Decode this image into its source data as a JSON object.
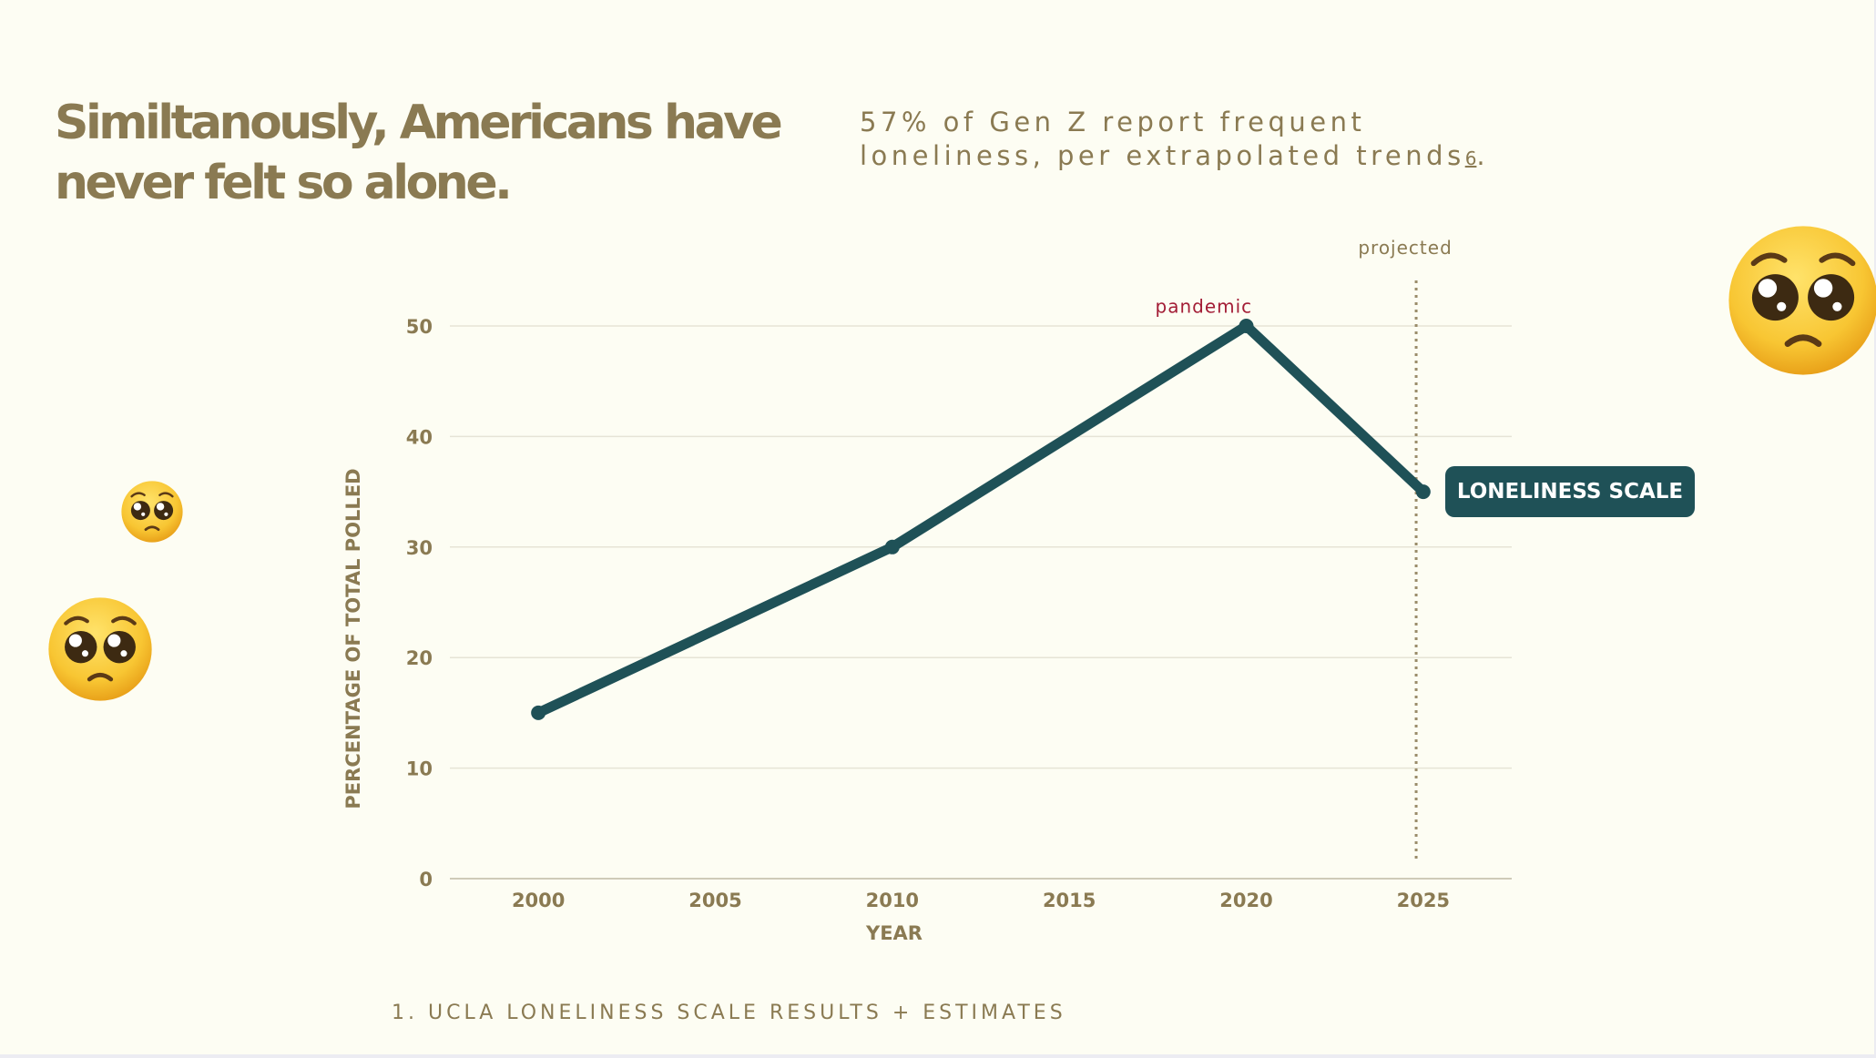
{
  "slide": {
    "title_line1": "Similtanously, Americans have",
    "title_line2": "never felt so alone.",
    "subtitle_line1": "57% of Gen Z report frequent",
    "subtitle_line2": "loneliness, per extrapolated trends",
    "subtitle_ref": "6",
    "subtitle_end": ".",
    "footnote": "1. UCLA LONELINESS SCALE RESULTS + ESTIMATES"
  },
  "decorations": {
    "emoji": "pleading-face-icon"
  },
  "colors": {
    "background": "#fdfdf3",
    "text": "#8a7a52",
    "series": "#1f5157",
    "pandemic": "#a31d36",
    "grid": "#e6e4d6",
    "projection": "#9a8c6a"
  },
  "chart_data": {
    "type": "line",
    "title": "",
    "xlabel": "YEAR",
    "ylabel": "PERCENTAGE OF TOTAL POLLED",
    "xlim": [
      1997.5,
      2027.5
    ],
    "ylim": [
      0,
      50
    ],
    "x_ticks": [
      2000,
      2005,
      2010,
      2015,
      2020,
      2025
    ],
    "y_ticks": [
      0,
      10,
      20,
      30,
      40,
      50
    ],
    "grid": true,
    "series": [
      {
        "name": "LONELINESS SCALE",
        "x": [
          2000,
          2010,
          2020,
          2025
        ],
        "values": [
          15,
          30,
          50,
          35
        ]
      }
    ],
    "annotations": [
      {
        "text": "pandemic",
        "x": 2018.8,
        "y": 51.2
      },
      {
        "text": "projected",
        "x": 2024.8,
        "y": 56.5
      }
    ],
    "projection_line_x": 2024.8,
    "legend_position": "right"
  }
}
